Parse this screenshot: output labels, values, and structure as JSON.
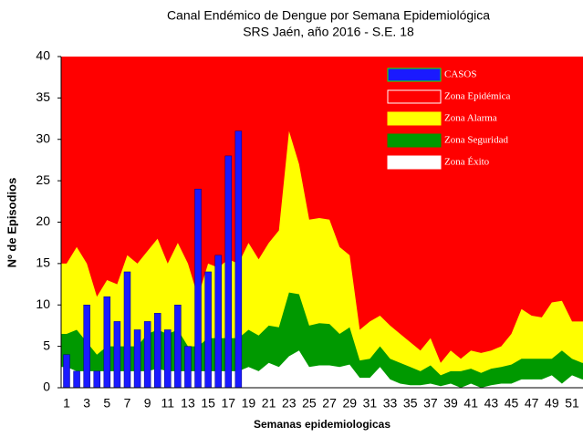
{
  "chart_data": {
    "type": "endemic-channel",
    "title": "Canal Endémico de Dengue por Semana Epidemiológica",
    "subtitle": "SRS Jaén, año 2016 - S.E.  18",
    "x_label": "Semanas epidemiologicas",
    "y_label": "Nº de Episodios",
    "categories": [
      "1",
      null,
      "3",
      null,
      "5",
      null,
      "7",
      null,
      "9",
      null,
      "11",
      null,
      "13",
      null,
      "15",
      null,
      "17",
      null,
      "19",
      null,
      "21",
      null,
      "23",
      null,
      "25",
      null,
      "27",
      null,
      "29",
      null,
      "31",
      null,
      "33",
      null,
      "35",
      null,
      "37",
      null,
      "39",
      null,
      "41",
      null,
      "43",
      null,
      "45",
      null,
      "47",
      null,
      "49",
      null,
      "51",
      null
    ],
    "ylim": [
      0,
      40
    ],
    "yticks": [
      0,
      5,
      10,
      15,
      20,
      25,
      30,
      35,
      40
    ],
    "series": [
      {
        "name": "CASOS",
        "color": "#1a1aff",
        "kind": "bar",
        "values": [
          4,
          2,
          10,
          2,
          11,
          8,
          14,
          7,
          8,
          9,
          7,
          10,
          5,
          24,
          14,
          16,
          28,
          31,
          null,
          null,
          null,
          null,
          null,
          null,
          null,
          null,
          null,
          null,
          null,
          null,
          null,
          null,
          null,
          null,
          null,
          null,
          null,
          null,
          null,
          null,
          null,
          null,
          null,
          null,
          null,
          null,
          null,
          null,
          null,
          null,
          null,
          null
        ]
      },
      {
        "name": "Zona Epidémica",
        "color": "#ff0000",
        "kind": "zone-top"
      },
      {
        "name": "Zona Alarma",
        "color": "#ffff00",
        "kind": "area",
        "values": [
          15,
          17,
          15,
          11,
          13,
          12.5,
          16,
          15,
          16.5,
          18,
          15,
          17.5,
          15,
          11,
          15,
          14.5,
          15.5,
          15,
          17.5,
          15.5,
          17.5,
          19,
          31,
          27,
          20.3,
          20.5,
          20.3,
          17,
          16,
          7,
          8,
          8.7,
          7.5,
          6.5,
          5.5,
          4.5,
          6,
          3,
          4.5,
          3.5,
          4.5,
          4.2,
          4.5,
          5,
          6.5,
          9.5,
          8.7,
          8.5,
          10.3,
          10.5,
          8,
          8
        ]
      },
      {
        "name": "Zona Seguridad",
        "color": "#009900",
        "kind": "area",
        "values": [
          6.5,
          7,
          5.5,
          4,
          5,
          5,
          5,
          5,
          6.5,
          7,
          6.5,
          7,
          5,
          5,
          6,
          6,
          6,
          6,
          7,
          6.3,
          7.5,
          7.3,
          11.5,
          11.3,
          7.5,
          7.8,
          7.7,
          6.5,
          7.3,
          3.3,
          3.5,
          5,
          3.5,
          3,
          2.5,
          2,
          2.7,
          1.5,
          2,
          2,
          2.3,
          1.8,
          2.3,
          2.5,
          2.8,
          3.5,
          3.5,
          3.5,
          3.5,
          4.5,
          3.5,
          3
        ]
      },
      {
        "name": "Zona Éxito",
        "color": "#ffffff",
        "kind": "area",
        "values": [
          2.5,
          2,
          2,
          2,
          2,
          2,
          2,
          2,
          2,
          2.3,
          2,
          2,
          2,
          2,
          2,
          2,
          2,
          2,
          2.5,
          2,
          3,
          2.5,
          3.8,
          4.5,
          2.5,
          2.7,
          2.7,
          2.5,
          2.8,
          1.2,
          1.2,
          2.5,
          1,
          0.5,
          0.3,
          0.3,
          0.5,
          0.2,
          0.5,
          0,
          0.5,
          0,
          0.3,
          0.5,
          0.5,
          1,
          1,
          1,
          1.5,
          0.5,
          1.5,
          1
        ]
      }
    ]
  }
}
